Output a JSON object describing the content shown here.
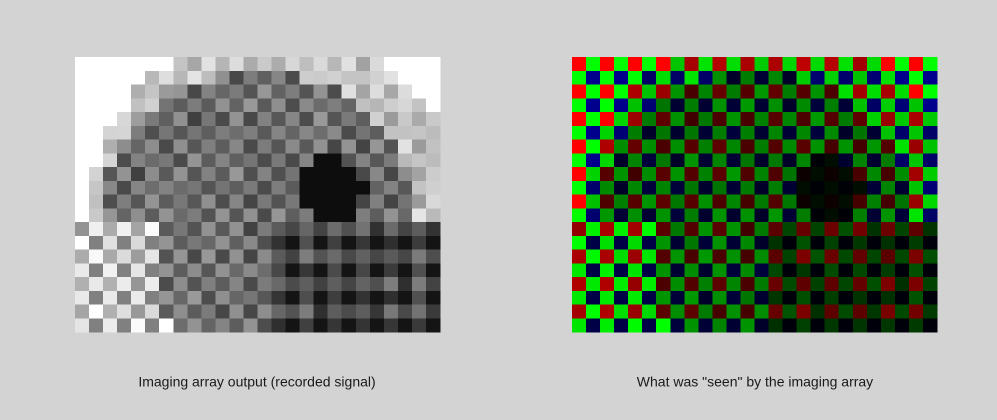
{
  "panels": [
    {
      "caption": "Imaging array output (recorded signal)"
    },
    {
      "caption": "What was \"seen\" by the imaging array"
    }
  ]
}
